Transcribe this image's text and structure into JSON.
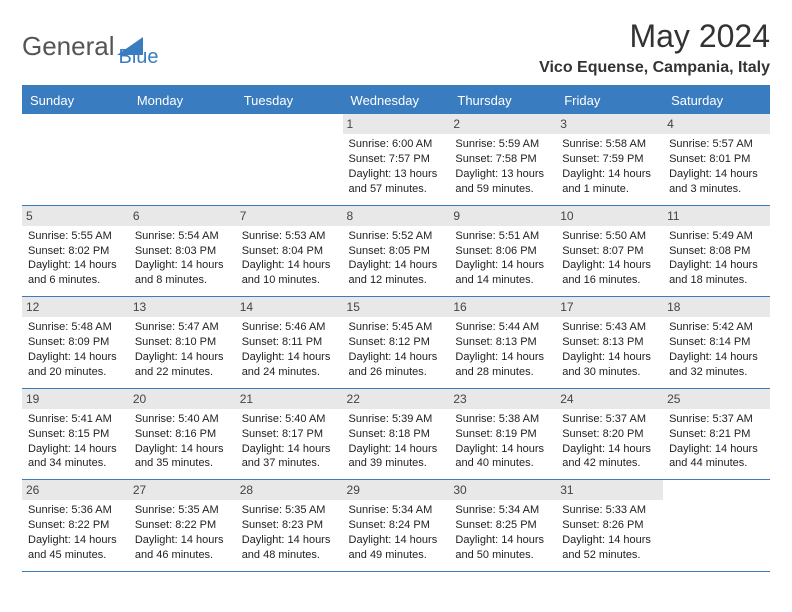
{
  "logo": {
    "part1": "General",
    "part2": "Blue"
  },
  "title": "May 2024",
  "location": "Vico Equense, Campania, Italy",
  "colors": {
    "accent": "#3a7cc0",
    "header_bg": "#3a7cc0",
    "header_text": "#ffffff",
    "daynum_bg": "#e8e8e8",
    "text": "#222222",
    "background": "#ffffff"
  },
  "day_names": [
    "Sunday",
    "Monday",
    "Tuesday",
    "Wednesday",
    "Thursday",
    "Friday",
    "Saturday"
  ],
  "weeks": [
    [
      null,
      null,
      null,
      {
        "d": "1",
        "sr": "Sunrise: 6:00 AM",
        "ss": "Sunset: 7:57 PM",
        "dl": "Daylight: 13 hours and 57 minutes."
      },
      {
        "d": "2",
        "sr": "Sunrise: 5:59 AM",
        "ss": "Sunset: 7:58 PM",
        "dl": "Daylight: 13 hours and 59 minutes."
      },
      {
        "d": "3",
        "sr": "Sunrise: 5:58 AM",
        "ss": "Sunset: 7:59 PM",
        "dl": "Daylight: 14 hours and 1 minute."
      },
      {
        "d": "4",
        "sr": "Sunrise: 5:57 AM",
        "ss": "Sunset: 8:01 PM",
        "dl": "Daylight: 14 hours and 3 minutes."
      }
    ],
    [
      {
        "d": "5",
        "sr": "Sunrise: 5:55 AM",
        "ss": "Sunset: 8:02 PM",
        "dl": "Daylight: 14 hours and 6 minutes."
      },
      {
        "d": "6",
        "sr": "Sunrise: 5:54 AM",
        "ss": "Sunset: 8:03 PM",
        "dl": "Daylight: 14 hours and 8 minutes."
      },
      {
        "d": "7",
        "sr": "Sunrise: 5:53 AM",
        "ss": "Sunset: 8:04 PM",
        "dl": "Daylight: 14 hours and 10 minutes."
      },
      {
        "d": "8",
        "sr": "Sunrise: 5:52 AM",
        "ss": "Sunset: 8:05 PM",
        "dl": "Daylight: 14 hours and 12 minutes."
      },
      {
        "d": "9",
        "sr": "Sunrise: 5:51 AM",
        "ss": "Sunset: 8:06 PM",
        "dl": "Daylight: 14 hours and 14 minutes."
      },
      {
        "d": "10",
        "sr": "Sunrise: 5:50 AM",
        "ss": "Sunset: 8:07 PM",
        "dl": "Daylight: 14 hours and 16 minutes."
      },
      {
        "d": "11",
        "sr": "Sunrise: 5:49 AM",
        "ss": "Sunset: 8:08 PM",
        "dl": "Daylight: 14 hours and 18 minutes."
      }
    ],
    [
      {
        "d": "12",
        "sr": "Sunrise: 5:48 AM",
        "ss": "Sunset: 8:09 PM",
        "dl": "Daylight: 14 hours and 20 minutes."
      },
      {
        "d": "13",
        "sr": "Sunrise: 5:47 AM",
        "ss": "Sunset: 8:10 PM",
        "dl": "Daylight: 14 hours and 22 minutes."
      },
      {
        "d": "14",
        "sr": "Sunrise: 5:46 AM",
        "ss": "Sunset: 8:11 PM",
        "dl": "Daylight: 14 hours and 24 minutes."
      },
      {
        "d": "15",
        "sr": "Sunrise: 5:45 AM",
        "ss": "Sunset: 8:12 PM",
        "dl": "Daylight: 14 hours and 26 minutes."
      },
      {
        "d": "16",
        "sr": "Sunrise: 5:44 AM",
        "ss": "Sunset: 8:13 PM",
        "dl": "Daylight: 14 hours and 28 minutes."
      },
      {
        "d": "17",
        "sr": "Sunrise: 5:43 AM",
        "ss": "Sunset: 8:13 PM",
        "dl": "Daylight: 14 hours and 30 minutes."
      },
      {
        "d": "18",
        "sr": "Sunrise: 5:42 AM",
        "ss": "Sunset: 8:14 PM",
        "dl": "Daylight: 14 hours and 32 minutes."
      }
    ],
    [
      {
        "d": "19",
        "sr": "Sunrise: 5:41 AM",
        "ss": "Sunset: 8:15 PM",
        "dl": "Daylight: 14 hours and 34 minutes."
      },
      {
        "d": "20",
        "sr": "Sunrise: 5:40 AM",
        "ss": "Sunset: 8:16 PM",
        "dl": "Daylight: 14 hours and 35 minutes."
      },
      {
        "d": "21",
        "sr": "Sunrise: 5:40 AM",
        "ss": "Sunset: 8:17 PM",
        "dl": "Daylight: 14 hours and 37 minutes."
      },
      {
        "d": "22",
        "sr": "Sunrise: 5:39 AM",
        "ss": "Sunset: 8:18 PM",
        "dl": "Daylight: 14 hours and 39 minutes."
      },
      {
        "d": "23",
        "sr": "Sunrise: 5:38 AM",
        "ss": "Sunset: 8:19 PM",
        "dl": "Daylight: 14 hours and 40 minutes."
      },
      {
        "d": "24",
        "sr": "Sunrise: 5:37 AM",
        "ss": "Sunset: 8:20 PM",
        "dl": "Daylight: 14 hours and 42 minutes."
      },
      {
        "d": "25",
        "sr": "Sunrise: 5:37 AM",
        "ss": "Sunset: 8:21 PM",
        "dl": "Daylight: 14 hours and 44 minutes."
      }
    ],
    [
      {
        "d": "26",
        "sr": "Sunrise: 5:36 AM",
        "ss": "Sunset: 8:22 PM",
        "dl": "Daylight: 14 hours and 45 minutes."
      },
      {
        "d": "27",
        "sr": "Sunrise: 5:35 AM",
        "ss": "Sunset: 8:22 PM",
        "dl": "Daylight: 14 hours and 46 minutes."
      },
      {
        "d": "28",
        "sr": "Sunrise: 5:35 AM",
        "ss": "Sunset: 8:23 PM",
        "dl": "Daylight: 14 hours and 48 minutes."
      },
      {
        "d": "29",
        "sr": "Sunrise: 5:34 AM",
        "ss": "Sunset: 8:24 PM",
        "dl": "Daylight: 14 hours and 49 minutes."
      },
      {
        "d": "30",
        "sr": "Sunrise: 5:34 AM",
        "ss": "Sunset: 8:25 PM",
        "dl": "Daylight: 14 hours and 50 minutes."
      },
      {
        "d": "31",
        "sr": "Sunrise: 5:33 AM",
        "ss": "Sunset: 8:26 PM",
        "dl": "Daylight: 14 hours and 52 minutes."
      },
      null
    ]
  ]
}
